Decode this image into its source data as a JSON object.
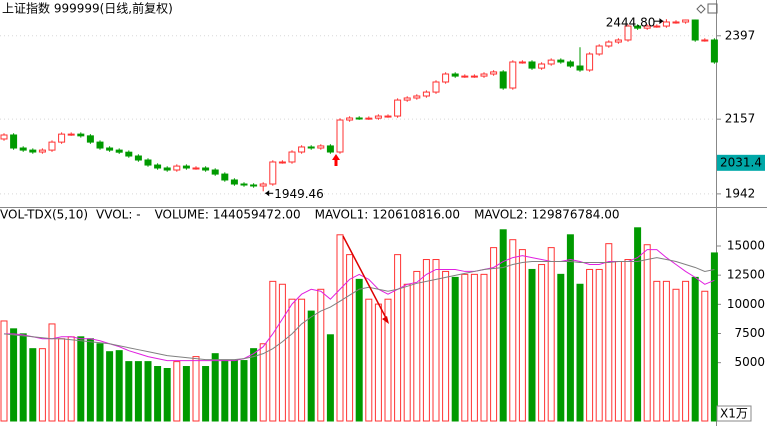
{
  "header": {
    "title": "上证指数 999999(日线,前复权)"
  },
  "chart_data": [
    {
      "type": "candlestick",
      "up_color": "#ff3232",
      "down_color": "#009a00",
      "grid": true,
      "ylim": [
        1910,
        2500
      ],
      "yticks": [
        1942,
        2157,
        2397
      ],
      "cursor_value": 2031.4,
      "annotations": [
        {
          "value": 1949.46,
          "label": "1949.46",
          "field": "low"
        },
        {
          "value": 2444.8,
          "label": "2444.80",
          "field": "high"
        }
      ],
      "open": [
        2100,
        2111.5,
        2074,
        2068,
        2062.5,
        2068,
        2091,
        2114,
        2114,
        2109,
        2091,
        2074,
        2068,
        2062,
        2051,
        2039.5,
        2025,
        2016.5,
        2010.7,
        2022,
        2016.5,
        2016.5,
        2010.7,
        1999,
        1982,
        1970.4,
        1967.6,
        1964.7,
        1970.4,
        2033.8,
        2033.8,
        2062.5,
        2077,
        2074,
        2080,
        2062.5,
        2154.6,
        2160.4,
        2160,
        2160,
        2166,
        2166,
        2212,
        2218,
        2223.7,
        2235,
        2264,
        2287,
        2281,
        2281,
        2281,
        2287,
        2293,
        2246.7,
        2321.6,
        2321.6,
        2304,
        2315.8,
        2327,
        2321.6,
        2310,
        2298.5,
        2344.6,
        2367.6,
        2379,
        2384.9,
        2425,
        2419,
        2425,
        2425,
        2436.7,
        2436.7,
        2442.4,
        2384.9,
        2384.9
      ],
      "high": [
        2116.5,
        2116.5,
        2079,
        2073,
        2073,
        2096,
        2119,
        2119,
        2119,
        2114,
        2096,
        2079,
        2073,
        2067,
        2056,
        2044.5,
        2030,
        2021.5,
        2027,
        2027,
        2021.5,
        2021.5,
        2015.7,
        2004,
        1987,
        1975.4,
        1972.6,
        1975.4,
        2038.8,
        2038.8,
        2067.5,
        2082,
        2082,
        2085,
        2085,
        2159.6,
        2165.4,
        2165.4,
        2165,
        2171,
        2171,
        2217,
        2223,
        2228.7,
        2240,
        2269,
        2292,
        2292,
        2286,
        2286,
        2292,
        2298,
        2298,
        2326.6,
        2326.6,
        2326.6,
        2320.8,
        2332,
        2332,
        2326.6,
        2364,
        2349.6,
        2372.6,
        2384,
        2389.9,
        2430,
        2430,
        2430,
        2430,
        2444.8,
        2441.7,
        2444,
        2444,
        2389.9,
        2389.9
      ],
      "low": [
        2095,
        2069,
        2063,
        2057.5,
        2057.5,
        2063,
        2086,
        2109,
        2104,
        2086,
        2069,
        2063,
        2057,
        2046,
        2034.5,
        2020,
        2011.5,
        2005.7,
        2005.7,
        2011.5,
        2011.5,
        2005.7,
        1994,
        1977,
        1965.4,
        1962.6,
        1959.7,
        1949.46,
        1965.4,
        2028.8,
        2028.8,
        2057.5,
        2069,
        2069,
        2057.5,
        2057.5,
        2149.6,
        2155,
        2155,
        2155,
        2161,
        2161,
        2207,
        2213,
        2218.7,
        2230,
        2259,
        2276,
        2276,
        2276,
        2276,
        2282,
        2241.7,
        2241.7,
        2316.6,
        2299,
        2299,
        2310.8,
        2316.6,
        2305,
        2293.5,
        2293.5,
        2339.6,
        2362.6,
        2374,
        2379.9,
        2414,
        2414,
        2420,
        2420,
        2431.7,
        2431.7,
        2379.9,
        2379.9,
        2316.6
      ],
      "close": [
        2111.5,
        2074,
        2068,
        2062.5,
        2068,
        2091,
        2114,
        2114,
        2109,
        2091,
        2074,
        2068,
        2062,
        2051,
        2039.5,
        2025,
        2016.5,
        2010.7,
        2022,
        2016.5,
        2016.5,
        2010.7,
        1999,
        1982,
        1970.4,
        1967.6,
        1964.7,
        1970.4,
        2033.8,
        2033.8,
        2062.5,
        2077,
        2074,
        2080,
        2062.5,
        2154.6,
        2160.4,
        2160,
        2160,
        2166,
        2166,
        2212,
        2218,
        2223.7,
        2235,
        2264,
        2287,
        2281,
        2281,
        2281,
        2287,
        2293,
        2246.7,
        2321.6,
        2321.6,
        2304,
        2315.8,
        2327,
        2321.6,
        2310,
        2298.5,
        2344.6,
        2367.6,
        2379,
        2384.9,
        2425,
        2419,
        2425,
        2425,
        2436.7,
        2436.7,
        2442.4,
        2384.9,
        2384.9,
        2321.6
      ]
    },
    {
      "type": "bar",
      "title": "VOL-TDX(5,10)",
      "subtitle": "VVOL: -",
      "unit_label": "X1万",
      "ylim": [
        0,
        18000
      ],
      "yticks": [
        5000,
        7500,
        10000,
        12500,
        15000
      ],
      "series": [
        {
          "name": "VOLUME:",
          "value_label": "144059472.00",
          "color": "#cc22cc",
          "values": [
            8575,
            7900,
            7470,
            6200,
            6200,
            8320,
            7050,
            7215,
            7215,
            7050,
            6620,
            5940,
            6030,
            5090,
            5090,
            5090,
            4670,
            4500,
            5090,
            4670,
            5520,
            4670,
            5770,
            5180,
            5180,
            5180,
            6200,
            6620,
            11970,
            11720,
            10440,
            10440,
            9420,
            11290,
            7390,
            15960,
            14260,
            12140,
            10440,
            10020,
            10440,
            14260,
            11720,
            12820,
            13840,
            13840,
            12820,
            12310,
            12570,
            12570,
            12570,
            14860,
            16390,
            15540,
            14690,
            12990,
            13410,
            14860,
            12570,
            15960,
            11720,
            12990,
            12990,
            15200,
            13670,
            13840,
            16560,
            15110,
            11970,
            11970,
            11290,
            11970,
            12310,
            11120,
            14405.9472
          ]
        },
        {
          "name": "MAVOL1:",
          "value_label": "120610816.00",
          "color": "#e020e0",
          "values": [
            7471,
            7471,
            7386,
            7217,
            7047,
            7047,
            7217,
            7217,
            7047,
            7047,
            6877,
            6622,
            6368,
            6028,
            5773,
            5519,
            5349,
            5179,
            5179,
            5179,
            5179,
            5179,
            5179,
            5179,
            5179,
            5349,
            5773,
            6368,
            7471,
            8745,
            10018,
            10867,
            11292,
            11122,
            10443,
            11292,
            12141,
            12565,
            12141,
            11292,
            10867,
            11292,
            11716,
            11886,
            12565,
            12990,
            12990,
            12990,
            12820,
            12820,
            12990,
            13160,
            13669,
            14008,
            14178,
            14008,
            13839,
            13669,
            13669,
            13839,
            13669,
            13414,
            13414,
            13669,
            13669,
            13669,
            14008,
            14688,
            14688,
            14008,
            13414,
            12820,
            12311,
            11716,
            12061.0816
          ]
        },
        {
          "name": "MAVOL2:",
          "value_label": "129876784.00",
          "color": "#808080",
          "values": [
            7471,
            7386,
            7301,
            7217,
            7132,
            7047,
            7047,
            6962,
            6877,
            6792,
            6707,
            6622,
            6452,
            6283,
            6113,
            5943,
            5773,
            5603,
            5519,
            5434,
            5349,
            5264,
            5264,
            5264,
            5264,
            5349,
            5519,
            5773,
            6198,
            6792,
            7471,
            8320,
            8915,
            9424,
            9764,
            10273,
            10782,
            11292,
            11462,
            11292,
            11122,
            11292,
            11546,
            11801,
            11971,
            12141,
            12311,
            12480,
            12650,
            12820,
            12990,
            13075,
            13160,
            13414,
            13584,
            13669,
            13669,
            13669,
            13669,
            13669,
            13584,
            13584,
            13584,
            13584,
            13669,
            13669,
            13669,
            13839,
            14008,
            13839,
            13669,
            13414,
            13160,
            12820,
            12987.6784
          ]
        }
      ]
    }
  ]
}
